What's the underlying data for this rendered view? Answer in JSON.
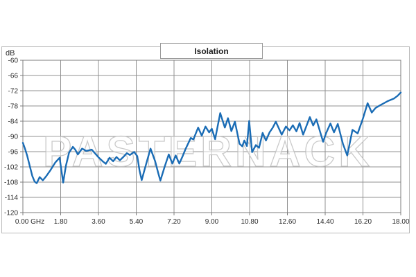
{
  "watermark": {
    "text": "PASTERNACK"
  },
  "colors": {
    "curve": "#1a6cb5",
    "grid": "#909090",
    "plot_border": "#7c7c7c",
    "outer_border": "#b9b9b9",
    "label": "#2b2b2b",
    "watermark_stroke": "#bdbdbd",
    "watermark_fill": "#ffffff"
  },
  "chart_data": {
    "type": "line",
    "title": "Isolation",
    "ylabel": "dB",
    "xlabel": "GHz",
    "grid": true,
    "legend_position": "none",
    "xlim": [
      0,
      18
    ],
    "ylim": [
      -120,
      -60
    ],
    "x_tick_values": [
      0,
      1.8,
      3.6,
      5.4,
      7.2,
      9.0,
      10.8,
      12.6,
      14.4,
      16.2,
      18.0
    ],
    "x_tick_labels": [
      "0.00 GHz",
      "1.80",
      "3.60",
      "5.40",
      "7.20",
      "9.00",
      "10.80",
      "12.60",
      "14.40",
      "16.20",
      "18.00"
    ],
    "y_tick_values": [
      -60,
      -66,
      -72,
      -78,
      -84,
      -90,
      -96,
      -102,
      -108,
      -114,
      -120
    ],
    "y_tick_labels": [
      "-60",
      "-66",
      "-72",
      "-78",
      "-84",
      "-90",
      "-96",
      "-102",
      "-108",
      "-114",
      "-120"
    ],
    "series": [
      {
        "name": "Isolation",
        "color": "#1a6cb5",
        "x": [
          0.0,
          0.1,
          0.2,
          0.33,
          0.45,
          0.56,
          0.66,
          0.8,
          0.95,
          1.1,
          1.32,
          1.55,
          1.75,
          1.92,
          2.05,
          2.2,
          2.38,
          2.5,
          2.62,
          2.82,
          3.02,
          3.28,
          3.6,
          3.8,
          3.95,
          4.13,
          4.3,
          4.46,
          4.62,
          4.8,
          4.95,
          5.1,
          5.3,
          5.45,
          5.56,
          5.66,
          5.8,
          5.92,
          6.08,
          6.3,
          6.45,
          6.55,
          6.75,
          6.95,
          7.12,
          7.28,
          7.45,
          7.6,
          7.75,
          8.0,
          8.12,
          8.35,
          8.52,
          8.7,
          8.87,
          9.0,
          9.16,
          9.4,
          9.62,
          9.77,
          9.93,
          10.1,
          10.32,
          10.45,
          10.55,
          10.67,
          10.78,
          10.92,
          11.1,
          11.25,
          11.42,
          11.58,
          11.75,
          11.9,
          12.05,
          12.33,
          12.53,
          12.7,
          12.86,
          13.03,
          13.18,
          13.35,
          13.67,
          13.83,
          13.98,
          14.3,
          14.45,
          14.65,
          14.82,
          15.0,
          15.25,
          15.45,
          15.7,
          15.95,
          16.2,
          16.42,
          16.62,
          16.8,
          17.0,
          17.2,
          17.4,
          17.67,
          17.85,
          18.0
        ],
        "y": [
          -92.5,
          -94.8,
          -97.5,
          -101.7,
          -105.6,
          -107.8,
          -108.4,
          -106.0,
          -107.3,
          -105.8,
          -103.2,
          -100.2,
          -98.4,
          -108.2,
          -101.5,
          -96.4,
          -94.1,
          -95.3,
          -97.1,
          -94.8,
          -95.7,
          -95.2,
          -98.2,
          -99.8,
          -100.8,
          -98.4,
          -99.8,
          -98.1,
          -99.4,
          -98.0,
          -96.6,
          -97.3,
          -96.1,
          -97.8,
          -103.5,
          -107.2,
          -103.0,
          -99.5,
          -94.8,
          -99.8,
          -104.5,
          -107.4,
          -102.0,
          -97.1,
          -100.7,
          -97.5,
          -100.7,
          -98.0,
          -94.9,
          -90.6,
          -91.2,
          -86.5,
          -89.7,
          -86.1,
          -88.4,
          -87.0,
          -91.1,
          -80.8,
          -86.5,
          -82.8,
          -87.9,
          -84.2,
          -92.9,
          -93.9,
          -91.6,
          -93.8,
          -83.9,
          -96.2,
          -93.4,
          -94.5,
          -88.6,
          -91.6,
          -88.4,
          -86.6,
          -84.2,
          -89.3,
          -86.1,
          -87.6,
          -85.6,
          -88.0,
          -84.7,
          -89.3,
          -82.4,
          -85.7,
          -83.3,
          -92.1,
          -88.6,
          -84.9,
          -88.4,
          -85.1,
          -93.0,
          -97.5,
          -87.4,
          -88.8,
          -82.9,
          -76.9,
          -80.6,
          -78.8,
          -77.8,
          -76.9,
          -76.0,
          -75.1,
          -74.0,
          -72.7
        ]
      }
    ]
  }
}
